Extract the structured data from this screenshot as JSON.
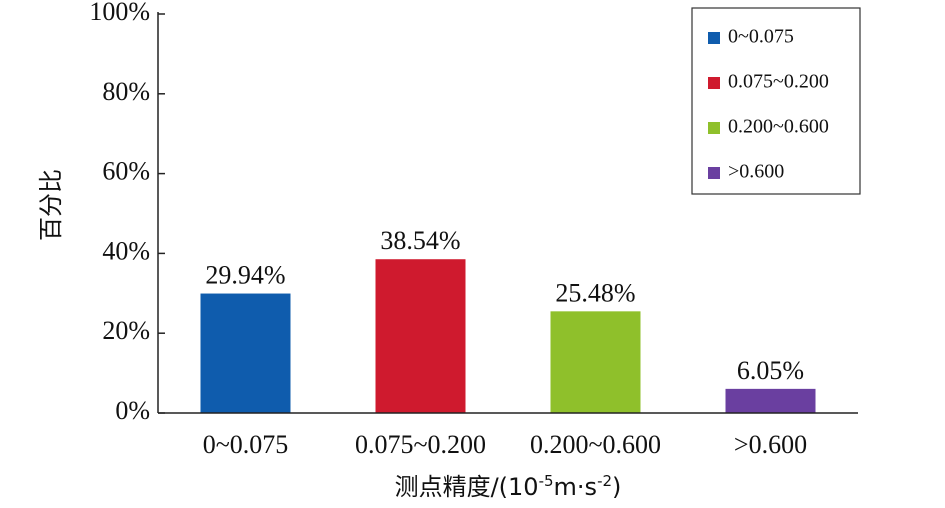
{
  "chart_data": {
    "type": "bar",
    "categories": [
      "0~0.075",
      "0.075~0.200",
      "0.200~0.600",
      ">0.600"
    ],
    "values": [
      29.94,
      38.54,
      25.48,
      6.05
    ],
    "data_labels": [
      "29.94%",
      "38.54%",
      "25.48%",
      "6.05%"
    ],
    "colors": [
      "#0f5cad",
      "#cf1a2e",
      "#8fc02b",
      "#6a3fa0"
    ],
    "ylabel": "百分比",
    "xlabel_main": "测点精度/(10",
    "xlabel_sup1": "-5",
    "xlabel_mid": "m·s",
    "xlabel_sup2": "-2",
    "xlabel_end": ")",
    "ylim": [
      0,
      100
    ],
    "yticks": [
      0,
      20,
      40,
      60,
      80,
      100
    ],
    "ytick_labels": [
      "0%",
      "20%",
      "40%",
      "60%",
      "80%",
      "100%"
    ],
    "grid": false,
    "legend": {
      "position": "top-right",
      "entries": [
        "0~0.075",
        "0.075~0.200",
        "0.200~0.600",
        ">0.600"
      ]
    }
  }
}
